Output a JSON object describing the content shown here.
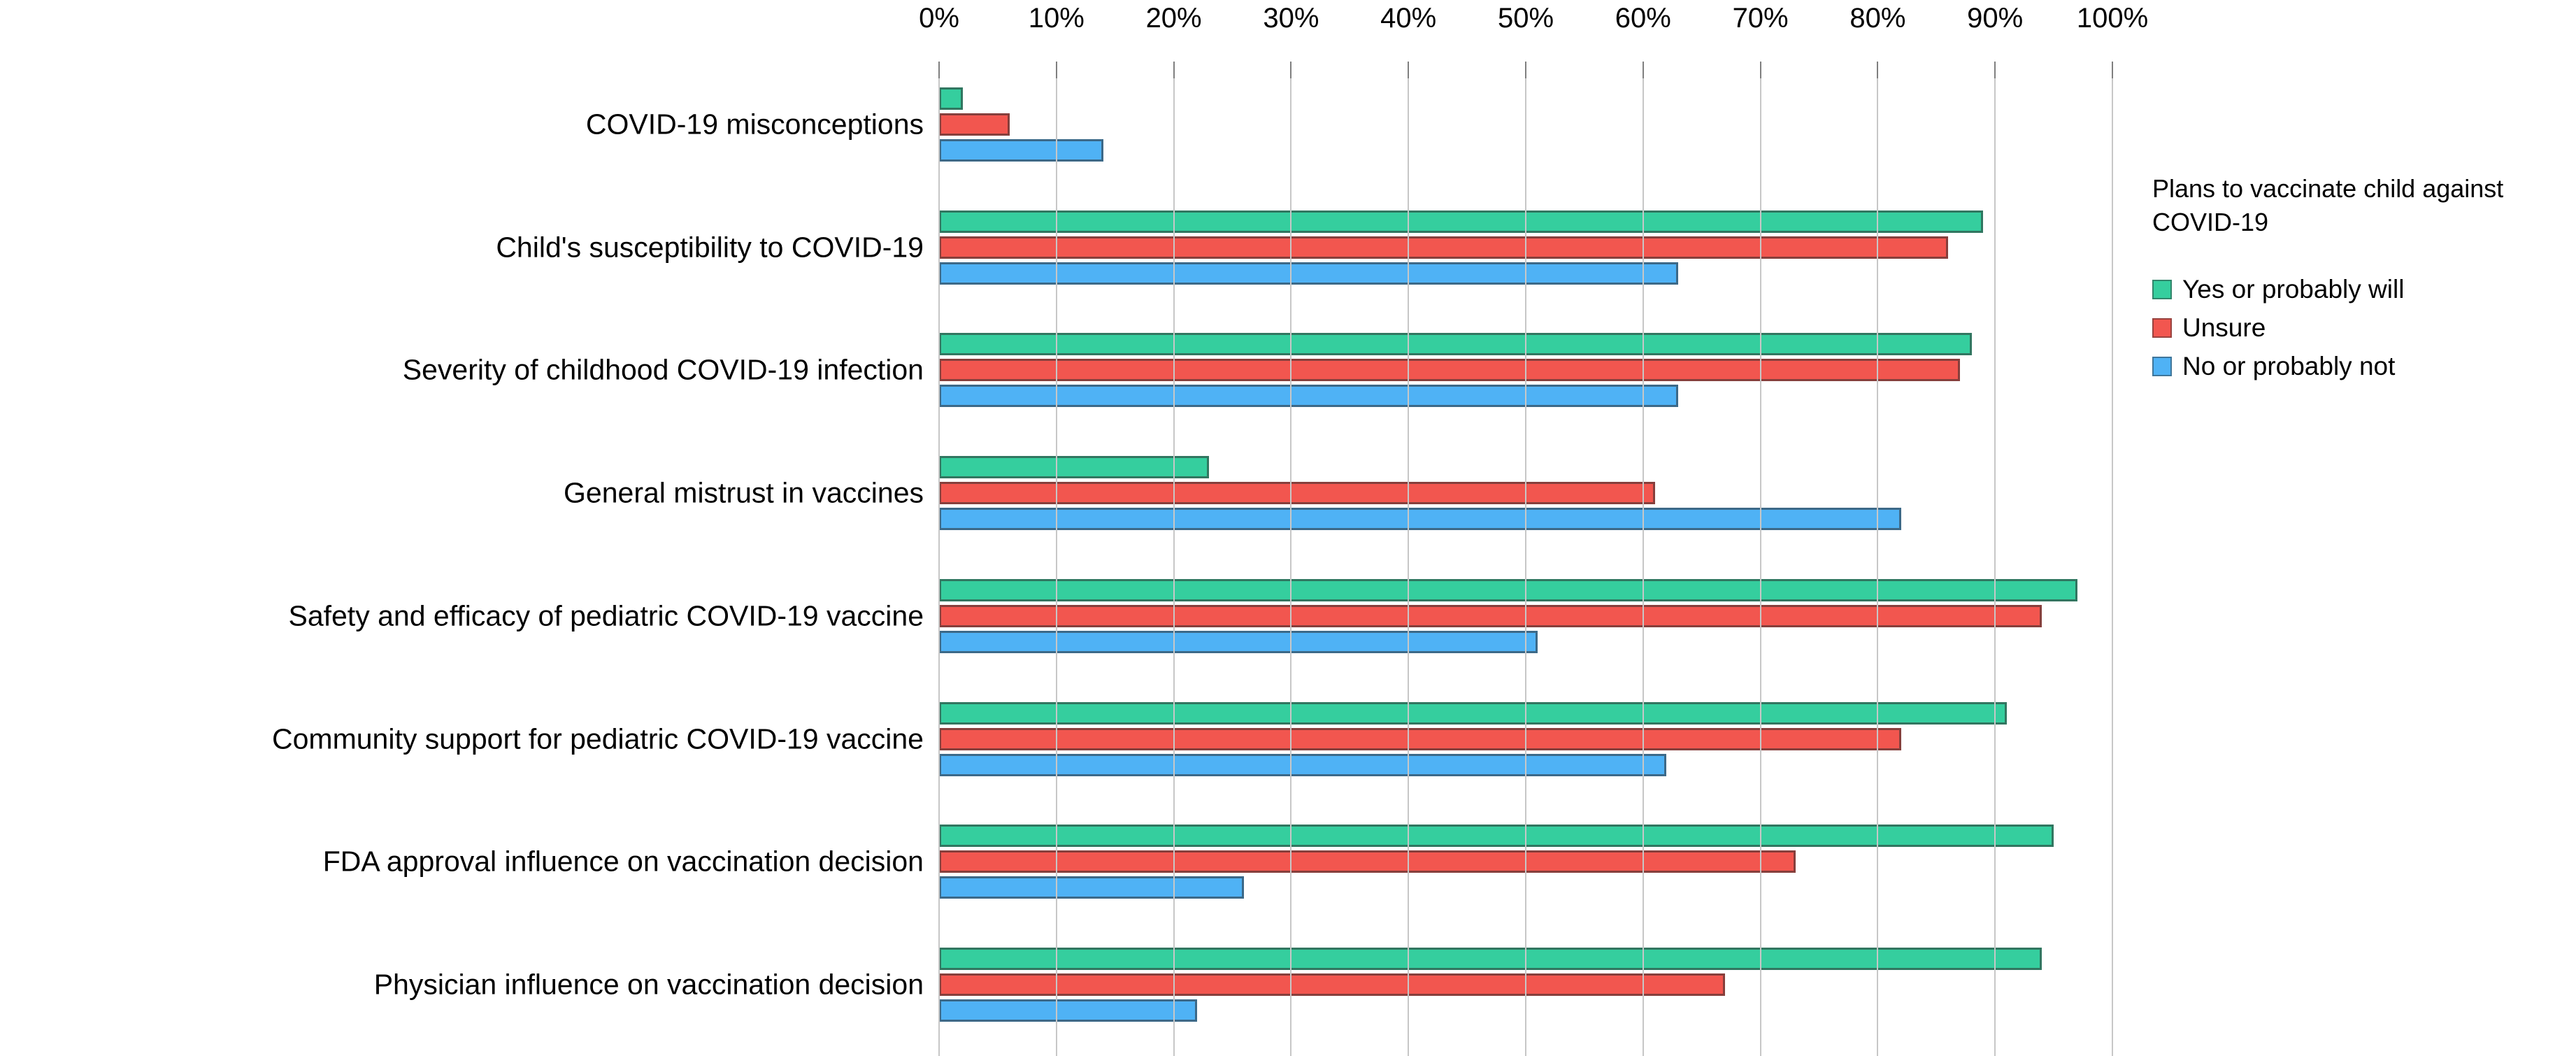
{
  "chart_data": {
    "type": "bar",
    "orientation": "horizontal",
    "title": "",
    "xlabel": "",
    "ylabel": "",
    "x_axis": {
      "min": 0,
      "max": 100,
      "step": 10,
      "tick_labels": [
        "0%",
        "10%",
        "20%",
        "30%",
        "40%",
        "50%",
        "60%",
        "70%",
        "80%",
        "90%",
        "100%"
      ]
    },
    "grid": true,
    "legend_position": "right",
    "legend_title": "Plans to vaccinate child against COVID-19",
    "categories": [
      "COVID-19 misconceptions",
      "Child's susceptibility to COVID-19",
      "Severity of childhood COVID-19 infection",
      "General mistrust in vaccines",
      "Safety and efficacy of pediatric COVID-19 vaccine",
      "Community support for pediatric COVID-19 vaccine",
      "FDA approval influence on vaccination decision",
      "Physician influence on vaccination decision"
    ],
    "series": [
      {
        "name": "Yes or probably will",
        "color": "#35ce9e",
        "values": [
          2,
          89,
          88,
          23,
          97,
          91,
          95,
          94
        ]
      },
      {
        "name": "Unsure",
        "color": "#f2564f",
        "values": [
          6,
          86,
          87,
          61,
          94,
          82,
          73,
          67
        ]
      },
      {
        "name": "No or probably not",
        "color": "#4fb2f5",
        "values": [
          14,
          63,
          63,
          82,
          51,
          62,
          26,
          22
        ]
      }
    ],
    "colors": {
      "gridline": "#c7c7c7",
      "tick": "#7f7f7f",
      "text": "#000000",
      "bar_border": "rgba(45,45,45,0.55)"
    }
  }
}
